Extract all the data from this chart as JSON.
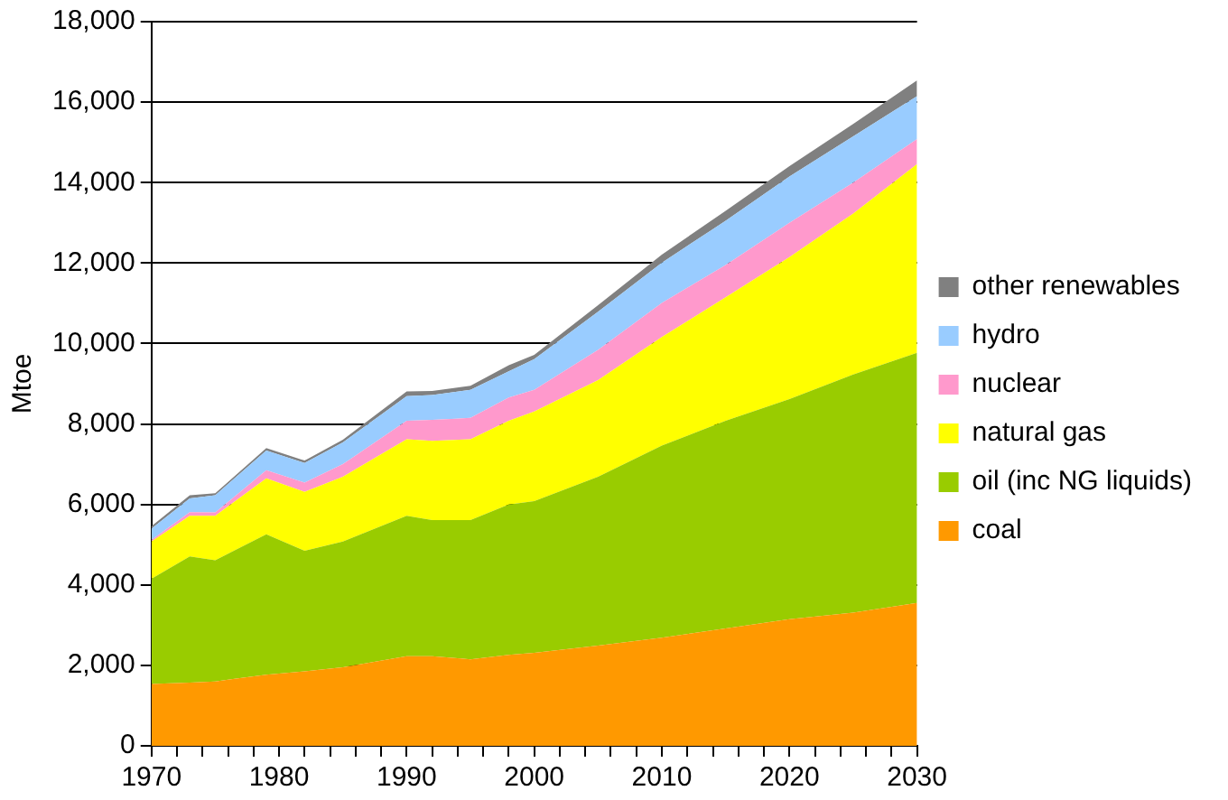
{
  "chart_data": {
    "type": "area",
    "stacked": true,
    "ylabel": "Mtoe",
    "x": [
      1970,
      1973,
      1975,
      1979,
      1982,
      1985,
      1990,
      1992,
      1995,
      1998,
      2000,
      2005,
      2010,
      2015,
      2020,
      2025,
      2030
    ],
    "series": [
      {
        "name": "coal",
        "color": "#ff9900",
        "values": [
          1540,
          1570,
          1600,
          1770,
          1850,
          1950,
          2230,
          2230,
          2150,
          2260,
          2310,
          2490,
          2690,
          2920,
          3150,
          3310,
          3550
        ]
      },
      {
        "name": "oil (inc NG liquids)",
        "color": "#99cc00",
        "values": [
          2610,
          3140,
          3010,
          3490,
          3000,
          3130,
          3490,
          3380,
          3460,
          3740,
          3770,
          4200,
          4770,
          5160,
          5470,
          5920,
          6220
        ]
      },
      {
        "name": "natural gas",
        "color": "#ffff00",
        "values": [
          930,
          1010,
          1110,
          1390,
          1460,
          1610,
          1900,
          1970,
          2010,
          2080,
          2230,
          2400,
          2700,
          3070,
          3530,
          4000,
          4690
        ]
      },
      {
        "name": "nuclear",
        "color": "#ff99cc",
        "values": [
          40,
          90,
          80,
          200,
          230,
          310,
          460,
          520,
          530,
          580,
          540,
          750,
          850,
          800,
          850,
          770,
          620
        ]
      },
      {
        "name": "hydro",
        "color": "#99ccff",
        "values": [
          280,
          340,
          430,
          490,
          490,
          540,
          610,
          620,
          700,
          650,
          760,
          950,
          1000,
          1100,
          1150,
          1150,
          1070
        ]
      },
      {
        "name": "other renewables",
        "color": "#808080",
        "values": [
          60,
          80,
          50,
          60,
          60,
          70,
          120,
          100,
          100,
          150,
          110,
          160,
          200,
          250,
          260,
          310,
          390
        ]
      }
    ],
    "xlim": [
      1970,
      2030
    ],
    "xticks": [
      1970,
      {
        "value": 1972,
        "label": null
      },
      {
        "value": 1974,
        "label": null
      },
      {
        "value": 1976,
        "label": null
      },
      {
        "value": 1978,
        "label": null
      },
      1980,
      {
        "value": 1982,
        "label": null
      },
      {
        "value": 1984,
        "label": null
      },
      {
        "value": 1986,
        "label": null
      },
      {
        "value": 1988,
        "label": null
      },
      1990,
      {
        "value": 1992,
        "label": null
      },
      {
        "value": 1994,
        "label": null
      },
      {
        "value": 1996,
        "label": null
      },
      {
        "value": 1998,
        "label": null
      },
      2000,
      {
        "value": 2002,
        "label": null
      },
      {
        "value": 2004,
        "label": null
      },
      {
        "value": 2006,
        "label": null
      },
      {
        "value": 2008,
        "label": null
      },
      2010,
      {
        "value": 2012,
        "label": null
      },
      {
        "value": 2014,
        "label": null
      },
      {
        "value": 2016,
        "label": null
      },
      {
        "value": 2018,
        "label": null
      },
      2020,
      {
        "value": 2022,
        "label": null
      },
      {
        "value": 2024,
        "label": null
      },
      {
        "value": 2026,
        "label": null
      },
      {
        "value": 2028,
        "label": null
      },
      2030
    ],
    "ylim": [
      0,
      18000
    ],
    "yticks": [
      0,
      {
        "value": 2000,
        "label": "2,000"
      },
      {
        "value": 4000,
        "label": "4,000"
      },
      {
        "value": 6000,
        "label": "6,000"
      },
      {
        "value": 8000,
        "label": "8,000"
      },
      {
        "value": 10000,
        "label": "10,000"
      },
      {
        "value": 12000,
        "label": "12,000"
      },
      {
        "value": 14000,
        "label": "14,000"
      },
      {
        "value": 16000,
        "label": "16,000"
      },
      {
        "value": 18000,
        "label": "18,000"
      }
    ],
    "grid": "y",
    "legend": "right",
    "marker": "none"
  }
}
